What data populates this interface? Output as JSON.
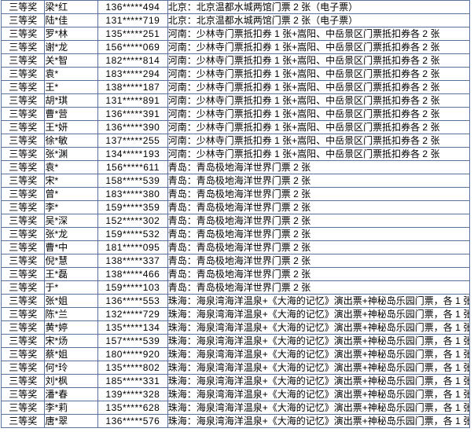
{
  "meta": {
    "border_color": "#5a739b",
    "background_color": "#ffffff",
    "text_color": "#000000",
    "award_label": "三等奖"
  },
  "prizes": {
    "beijing": "北京：北京温都水城两馆门票 2 张（电子票）",
    "henan": "河南：少林寺门票抵扣券 1 张+嵩阳、中岳景区门票抵扣券各 2 张",
    "qingdao": "青岛：青岛极地海洋世界门票 2 张",
    "zhuhai": "珠海：海泉湾海洋温泉+《大海的记忆》演出票+神秘岛乐园门票，各 1 张"
  },
  "table": {
    "columns": [
      "award",
      "name",
      "phone",
      "prize"
    ],
    "rows": [
      {
        "award": "三等奖",
        "name": "梁*红",
        "phone": "136*****494",
        "prize": "北京：北京温都水城两馆门票 2 张（电子票）"
      },
      {
        "award": "三等奖",
        "name": "陆*佳",
        "phone": "131*****719",
        "prize": "北京：北京温都水城两馆门票 2 张（电子票）"
      },
      {
        "award": "三等奖",
        "name": "罗*林",
        "phone": "135*****251",
        "prize": "河南：少林寺门票抵扣券 1 张+嵩阳、中岳景区门票抵扣券各 2 张"
      },
      {
        "award": "三等奖",
        "name": "谢*龙",
        "phone": "156*****069",
        "prize": "河南：少林寺门票抵扣券 1 张+嵩阳、中岳景区门票抵扣券各 2 张"
      },
      {
        "award": "三等奖",
        "name": "关*智",
        "phone": "182*****814",
        "prize": "河南：少林寺门票抵扣券 1 张+嵩阳、中岳景区门票抵扣券各 2 张"
      },
      {
        "award": "三等奖",
        "name": "袁*",
        "phone": "183*****294",
        "prize": "河南：少林寺门票抵扣券 1 张+嵩阳、中岳景区门票抵扣券各 2 张"
      },
      {
        "award": "三等奖",
        "name": "王*",
        "phone": "138*****187",
        "prize": "河南：少林寺门票抵扣券 1 张+嵩阳、中岳景区门票抵扣券各 2 张"
      },
      {
        "award": "三等奖",
        "name": "胡*琪",
        "phone": "131*****891",
        "prize": "河南：少林寺门票抵扣券 1 张+嵩阳、中岳景区门票抵扣券各 2 张"
      },
      {
        "award": "三等奖",
        "name": "曹*营",
        "phone": "136*****391",
        "prize": "河南：少林寺门票抵扣券 1 张+嵩阳、中岳景区门票抵扣券各 2 张"
      },
      {
        "award": "三等奖",
        "name": "王*妍",
        "phone": "136*****390",
        "prize": "河南：少林寺门票抵扣券 1 张+嵩阳、中岳景区门票抵扣券各 2 张"
      },
      {
        "award": "三等奖",
        "name": "徐*敏",
        "phone": "137*****255",
        "prize": "河南：少林寺门票抵扣券 1 张+嵩阳、中岳景区门票抵扣券各 2 张"
      },
      {
        "award": "三等奖",
        "name": "张*渊",
        "phone": "134*****193",
        "prize": "河南：少林寺门票抵扣券 1 张+嵩阳、中岳景区门票抵扣券各 2 张"
      },
      {
        "award": "三等奖",
        "name": "袁*",
        "phone": "156*****611",
        "prize": "青岛：青岛极地海洋世界门票 2 张"
      },
      {
        "award": "三等奖",
        "name": "宋*",
        "phone": "158*****539",
        "prize": "青岛：青岛极地海洋世界门票 2 张"
      },
      {
        "award": "三等奖",
        "name": "曾*",
        "phone": "183*****380",
        "prize": "青岛：青岛极地海洋世界门票 2 张"
      },
      {
        "award": "三等奖",
        "name": "李*",
        "phone": "159*****359",
        "prize": "青岛：青岛极地海洋世界门票 2 张"
      },
      {
        "award": "三等奖",
        "name": "吴*深",
        "phone": "152*****302",
        "prize": "青岛：青岛极地海洋世界门票 2 张"
      },
      {
        "award": "三等奖",
        "name": "张*龙",
        "phone": "159*****532",
        "prize": "青岛：青岛极地海洋世界门票 2 张"
      },
      {
        "award": "三等奖",
        "name": "曹*中",
        "phone": "181*****095",
        "prize": "青岛：青岛极地海洋世界门票 2 张"
      },
      {
        "award": "三等奖",
        "name": "倪*慧",
        "phone": "138*****337",
        "prize": "青岛：青岛极地海洋世界门票 2 张"
      },
      {
        "award": "三等奖",
        "name": "王*磊",
        "phone": "138*****466",
        "prize": "青岛：青岛极地海洋世界门票 2 张"
      },
      {
        "award": "三等奖",
        "name": "于*",
        "phone": "159*****103",
        "prize": "青岛：青岛极地海洋世界门票 2 张"
      },
      {
        "award": "三等奖",
        "name": "张*姐",
        "phone": "136*****553",
        "prize": "珠海：海泉湾海洋温泉+《大海的记忆》演出票+神秘岛乐园门票，各 1 张"
      },
      {
        "award": "三等奖",
        "name": "陈*兰",
        "phone": "132*****729",
        "prize": "珠海：海泉湾海洋温泉+《大海的记忆》演出票+神秘岛乐园门票，各 1 张"
      },
      {
        "award": "三等奖",
        "name": "黄*婷",
        "phone": "135*****134",
        "prize": "珠海：海泉湾海洋温泉+《大海的记忆》演出票+神秘岛乐园门票，各 1 张"
      },
      {
        "award": "三等奖",
        "name": "宋*炀",
        "phone": "157*****539",
        "prize": "珠海：海泉湾海洋温泉+《大海的记忆》演出票+神秘岛乐园门票，各 1 张"
      },
      {
        "award": "三等奖",
        "name": "蔡*姐",
        "phone": "180*****920",
        "prize": "珠海：海泉湾海洋温泉+《大海的记忆》演出票+神秘岛乐园门票，各 1 张"
      },
      {
        "award": "三等奖",
        "name": "何*玲",
        "phone": "135*****802",
        "prize": "珠海：海泉湾海洋温泉+《大海的记忆》演出票+神秘岛乐园门票，各 1 张"
      },
      {
        "award": "三等奖",
        "name": "刘*枫",
        "phone": "185*****331",
        "prize": "珠海：海泉湾海洋温泉+《大海的记忆》演出票+神秘岛乐园门票，各 1 张"
      },
      {
        "award": "三等奖",
        "name": "潘*春",
        "phone": "139*****328",
        "prize": "珠海：海泉湾海洋温泉+《大海的记忆》演出票+神秘岛乐园门票，各 1 张"
      },
      {
        "award": "三等奖",
        "name": "李*莉",
        "phone": "135*****628",
        "prize": "珠海：海泉湾海洋温泉+《大海的记忆》演出票+神秘岛乐园门票，各 1 张"
      },
      {
        "award": "三等奖",
        "name": "唐*翠",
        "phone": "136*****576",
        "prize": "珠海：海泉湾海洋温泉+《大海的记忆》演出票+神秘岛乐园门票，各 1 张"
      }
    ]
  }
}
